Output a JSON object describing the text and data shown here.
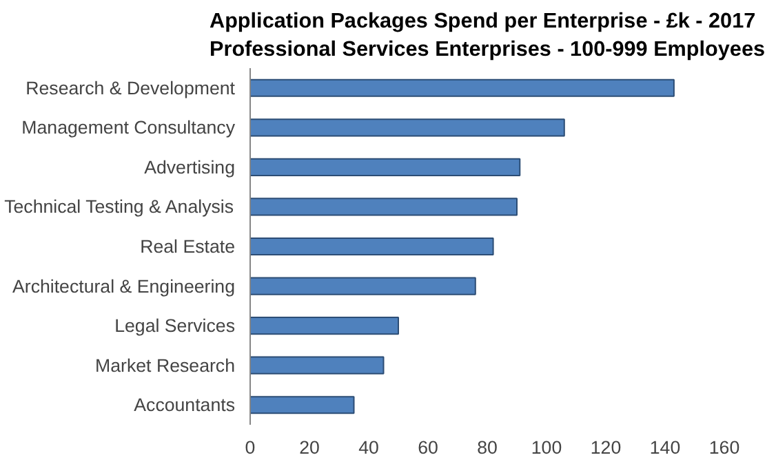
{
  "chart_data": {
    "type": "bar",
    "orientation": "horizontal",
    "title": "Application Packages Spend per Enterprise - £k - 2017\nProfessional Services Enterprises - 100-999 Employees",
    "categories": [
      "Research & Development",
      "Management Consultancy",
      "Advertising",
      "Technical Testing & Analysis",
      "Real Estate",
      "Architectural & Engineering",
      "Legal Services",
      "Market Research",
      "Accountants"
    ],
    "values": [
      143,
      106,
      91,
      90,
      82,
      76,
      50,
      45,
      35
    ],
    "color": "#4f81bd",
    "xlim": [
      0,
      160
    ],
    "xticks": [
      0,
      20,
      40,
      60,
      80,
      100,
      120,
      140,
      160
    ],
    "grid": false
  }
}
